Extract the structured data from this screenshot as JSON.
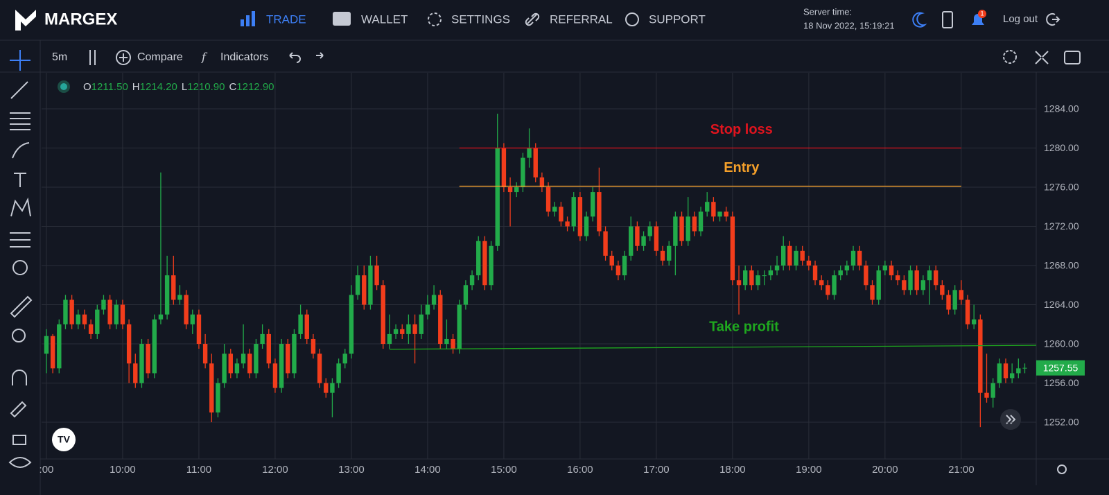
{
  "nav": {
    "logo": "MARGEX",
    "items": [
      "TRADE",
      "WALLET",
      "SETTINGS",
      "REFERRAL",
      "SUPPORT"
    ],
    "server_time_label": "Server time:",
    "server_time": "18 Nov 2022, 15:19:21",
    "notifications": "1",
    "logout": "Log out"
  },
  "toolbar": {
    "interval": "5m",
    "compare": "Compare",
    "indicators": "Indicators"
  },
  "ohlc_legend": [
    {
      "key": "O",
      "value": "1211.50"
    },
    {
      "key": "H",
      "value": "1214.20"
    },
    {
      "key": "L",
      "value": "1210.90"
    },
    {
      "key": "C",
      "value": "1212.90"
    }
  ],
  "chart_data": {
    "type": "candlestick",
    "up_color": "#22ab4a",
    "down_color": "#f23d1c",
    "grid": true,
    "xlim": [
      -0.76,
      155.8
    ],
    "ylim": [
      1248.25,
      1287.68
    ],
    "xticks": [
      {
        "value": 0,
        "label": ":00"
      },
      {
        "value": 12,
        "label": "10:00"
      },
      {
        "value": 24,
        "label": "11:00"
      },
      {
        "value": 36,
        "label": "12:00"
      },
      {
        "value": 48,
        "label": "13:00"
      },
      {
        "value": 60,
        "label": "14:00"
      },
      {
        "value": 72,
        "label": "15:00"
      },
      {
        "value": 84,
        "label": "16:00"
      },
      {
        "value": 96,
        "label": "17:00"
      },
      {
        "value": 108,
        "label": "18:00"
      },
      {
        "value": 120,
        "label": "19:00"
      },
      {
        "value": 132,
        "label": "20:00"
      },
      {
        "value": 144,
        "label": "21:00"
      }
    ],
    "yticks": [
      {
        "value": 1252,
        "label": "1252.00"
      },
      {
        "value": 1256,
        "label": "1256.00"
      },
      {
        "value": 1260,
        "label": "1260.00"
      },
      {
        "value": 1264,
        "label": "1264.00"
      },
      {
        "value": 1268,
        "label": "1268.00"
      },
      {
        "value": 1272,
        "label": "1272.00"
      },
      {
        "value": 1276,
        "label": "1276.00"
      },
      {
        "value": 1280,
        "label": "1280.00"
      },
      {
        "value": 1284,
        "label": "1284.00"
      }
    ],
    "lines": [
      {
        "label": "Stop loss",
        "color": "#e0141e",
        "x": [
          65,
          144
        ],
        "values": [
          1280,
          1280
        ]
      },
      {
        "label": "Entry",
        "color": "#f5a02a",
        "x": [
          65,
          144
        ],
        "values": [
          1276.1,
          1276.1
        ]
      },
      {
        "label": "Take profit",
        "color": "#1fa81f",
        "x": [
          54,
          155.8
        ],
        "values": [
          1259.45,
          1259.85
        ]
      }
    ],
    "ohlc": [
      [
        1259,
        1261.5,
        1257,
        1260.8
      ],
      [
        1260.8,
        1261,
        1257,
        1257.5
      ],
      [
        1257.5,
        1262.5,
        1257,
        1262
      ],
      [
        1262,
        1265,
        1261.5,
        1264.5
      ],
      [
        1264.5,
        1265,
        1261.5,
        1262
      ],
      [
        1262,
        1263.5,
        1261.5,
        1263
      ],
      [
        1263,
        1263.5,
        1261.5,
        1262
      ],
      [
        1262,
        1262.5,
        1260.5,
        1261
      ],
      [
        1261,
        1264,
        1260.5,
        1263.5
      ],
      [
        1263.5,
        1265,
        1263,
        1264.5
      ],
      [
        1264.5,
        1265,
        1261.5,
        1262
      ],
      [
        1262,
        1264.5,
        1261.5,
        1264
      ],
      [
        1264,
        1264.5,
        1261.5,
        1262
      ],
      [
        1262,
        1262.5,
        1256,
        1258
      ],
      [
        1258,
        1259,
        1255.5,
        1256
      ],
      [
        1256,
        1260.5,
        1255.5,
        1260
      ],
      [
        1260,
        1260.5,
        1256.5,
        1257
      ],
      [
        1257,
        1263,
        1256.5,
        1262.5
      ],
      [
        1262.5,
        1277.5,
        1262,
        1263
      ],
      [
        1263,
        1269,
        1262.5,
        1267
      ],
      [
        1267,
        1269,
        1264,
        1264.5
      ],
      [
        1264.5,
        1266,
        1264,
        1265
      ],
      [
        1265,
        1265.5,
        1261.5,
        1262
      ],
      [
        1262,
        1263.5,
        1261,
        1263
      ],
      [
        1263,
        1263.5,
        1259.5,
        1260
      ],
      [
        1260,
        1261,
        1257.5,
        1258
      ],
      [
        1258,
        1259,
        1252,
        1253
      ],
      [
        1253,
        1256.5,
        1252.5,
        1256
      ],
      [
        1256,
        1260,
        1255.5,
        1259
      ],
      [
        1259,
        1259.5,
        1256.5,
        1257
      ],
      [
        1257,
        1258.5,
        1256.5,
        1258
      ],
      [
        1258,
        1262,
        1257.5,
        1259
      ],
      [
        1259,
        1259.5,
        1256.5,
        1257
      ],
      [
        1257,
        1260.5,
        1256.5,
        1260
      ],
      [
        1260,
        1262,
        1259.5,
        1261
      ],
      [
        1261,
        1261.5,
        1257.5,
        1258
      ],
      [
        1258,
        1258.5,
        1255,
        1255.5
      ],
      [
        1255.5,
        1260.5,
        1255,
        1260
      ],
      [
        1260,
        1260.5,
        1256.5,
        1257
      ],
      [
        1257,
        1261.5,
        1256.5,
        1261
      ],
      [
        1261,
        1264,
        1260.5,
        1263
      ],
      [
        1263,
        1263.5,
        1260,
        1260.5
      ],
      [
        1260.5,
        1261,
        1258.5,
        1259
      ],
      [
        1259,
        1259.5,
        1255.5,
        1256
      ],
      [
        1256,
        1256.5,
        1254.5,
        1255
      ],
      [
        1255,
        1256.5,
        1252.5,
        1256
      ],
      [
        1256,
        1258.5,
        1255.5,
        1258
      ],
      [
        1258,
        1259.5,
        1257.5,
        1259
      ],
      [
        1259,
        1266,
        1258.5,
        1265
      ],
      [
        1265,
        1268,
        1264.5,
        1267
      ],
      [
        1267,
        1268,
        1263.5,
        1264
      ],
      [
        1264,
        1269,
        1263.5,
        1268
      ],
      [
        1268,
        1269,
        1265.5,
        1266
      ],
      [
        1266,
        1266.5,
        1259.5,
        1260
      ],
      [
        1260,
        1263,
        1259.5,
        1261
      ],
      [
        1261,
        1262,
        1260.5,
        1261.5
      ],
      [
        1261.5,
        1262,
        1260.5,
        1261
      ],
      [
        1261,
        1263,
        1260,
        1262
      ],
      [
        1262,
        1263,
        1258,
        1261
      ],
      [
        1261,
        1264,
        1260.5,
        1263
      ],
      [
        1263,
        1265,
        1262.5,
        1264
      ],
      [
        1264,
        1266,
        1263.5,
        1265
      ],
      [
        1265,
        1265.5,
        1259.5,
        1260
      ],
      [
        1260,
        1262.5,
        1259.5,
        1260.5
      ],
      [
        1260.5,
        1261,
        1259,
        1259.5
      ],
      [
        1259.5,
        1264.5,
        1259,
        1264
      ],
      [
        1264,
        1266.5,
        1263.5,
        1266
      ],
      [
        1266,
        1267.5,
        1265.5,
        1267
      ],
      [
        1267,
        1271,
        1266.5,
        1270.5
      ],
      [
        1270.5,
        1271,
        1265.5,
        1266
      ],
      [
        1266,
        1270.5,
        1265.5,
        1270
      ],
      [
        1270,
        1283.5,
        1269.5,
        1280
      ],
      [
        1280,
        1280.5,
        1275.5,
        1276
      ],
      [
        1276,
        1277,
        1272,
        1275.5
      ],
      [
        1275.5,
        1276.5,
        1275,
        1276
      ],
      [
        1276,
        1279.5,
        1275.5,
        1279
      ],
      [
        1279,
        1282,
        1278,
        1280
      ],
      [
        1280,
        1280.5,
        1276.5,
        1277
      ],
      [
        1277,
        1277.5,
        1275.5,
        1276
      ],
      [
        1276,
        1276.5,
        1273,
        1273.5
      ],
      [
        1273.5,
        1274.5,
        1273,
        1274
      ],
      [
        1274,
        1274.5,
        1272,
        1272.5
      ],
      [
        1272.5,
        1273,
        1271.5,
        1272
      ],
      [
        1272,
        1275.5,
        1271.5,
        1275
      ],
      [
        1275,
        1275.5,
        1270.5,
        1271
      ],
      [
        1271,
        1273.5,
        1270.5,
        1273
      ],
      [
        1273,
        1276,
        1272.5,
        1275.5
      ],
      [
        1275.5,
        1278,
        1271,
        1271.5
      ],
      [
        1271.5,
        1272,
        1268.5,
        1269
      ],
      [
        1269,
        1269.5,
        1267.5,
        1268
      ],
      [
        1268,
        1268.5,
        1266.5,
        1267
      ],
      [
        1267,
        1269.5,
        1266.5,
        1269
      ],
      [
        1269,
        1273,
        1268.5,
        1272
      ],
      [
        1272,
        1272.5,
        1269.5,
        1270
      ],
      [
        1270,
        1271.5,
        1269.5,
        1271
      ],
      [
        1271,
        1272.5,
        1270.5,
        1272
      ],
      [
        1272,
        1272.5,
        1269,
        1269.5
      ],
      [
        1269.5,
        1270,
        1268,
        1268.5
      ],
      [
        1268.5,
        1270.5,
        1268,
        1270
      ],
      [
        1270,
        1273.5,
        1267,
        1273
      ],
      [
        1273,
        1273.5,
        1270,
        1270.5
      ],
      [
        1270.5,
        1275,
        1270,
        1273
      ],
      [
        1273,
        1273.5,
        1271,
        1271.5
      ],
      [
        1271.5,
        1274,
        1271,
        1273.5
      ],
      [
        1273.5,
        1275.5,
        1273,
        1274.5
      ],
      [
        1274.5,
        1275,
        1272.5,
        1273
      ],
      [
        1273,
        1273.5,
        1272.5,
        1273.5
      ],
      [
        1273.5,
        1274,
        1272.5,
        1273
      ],
      [
        1273,
        1273.5,
        1266,
        1266.5
      ],
      [
        1266.5,
        1268,
        1263,
        1266
      ],
      [
        1266,
        1268,
        1265.5,
        1267.5
      ],
      [
        1267.5,
        1268,
        1265.5,
        1266
      ],
      [
        1266,
        1267.5,
        1265.5,
        1267
      ],
      [
        1267,
        1267.5,
        1266,
        1267
      ],
      [
        1267,
        1268,
        1266.5,
        1267.5
      ],
      [
        1267.5,
        1269,
        1267,
        1268
      ],
      [
        1268,
        1271,
        1267.5,
        1270
      ],
      [
        1270,
        1270.5,
        1267.5,
        1268
      ],
      [
        1268,
        1270,
        1267.5,
        1269.5
      ],
      [
        1269.5,
        1270,
        1268,
        1268.5
      ],
      [
        1268.5,
        1269,
        1267.5,
        1268
      ],
      [
        1268,
        1268.5,
        1266,
        1266.5
      ],
      [
        1266.5,
        1267,
        1265.5,
        1266
      ],
      [
        1266,
        1266.5,
        1264.5,
        1265
      ],
      [
        1265,
        1267.5,
        1264.5,
        1267
      ],
      [
        1267,
        1268,
        1266.5,
        1267.5
      ],
      [
        1267.5,
        1268.5,
        1267,
        1268
      ],
      [
        1268,
        1270,
        1267.5,
        1269.5
      ],
      [
        1269.5,
        1270,
        1267.5,
        1268
      ],
      [
        1268,
        1268.5,
        1265.5,
        1266
      ],
      [
        1266,
        1266.5,
        1264,
        1264.5
      ],
      [
        1264.5,
        1268,
        1264,
        1267.5
      ],
      [
        1267.5,
        1268.5,
        1267,
        1268
      ],
      [
        1268,
        1268.5,
        1266.5,
        1267
      ],
      [
        1267,
        1267.5,
        1266,
        1266.5
      ],
      [
        1266.5,
        1267,
        1265,
        1265.5
      ],
      [
        1265.5,
        1268,
        1265,
        1267.5
      ],
      [
        1267.5,
        1268,
        1265,
        1265.5
      ],
      [
        1265.5,
        1267,
        1265,
        1266.5
      ],
      [
        1266.5,
        1268,
        1264,
        1267.5
      ],
      [
        1267.5,
        1268,
        1265.5,
        1266
      ],
      [
        1266,
        1266.5,
        1264.5,
        1265
      ],
      [
        1265,
        1265.5,
        1263,
        1263.5
      ],
      [
        1263.5,
        1266,
        1263,
        1265.5
      ],
      [
        1265.5,
        1266.5,
        1264,
        1264.5
      ],
      [
        1264.5,
        1265,
        1261.5,
        1262
      ],
      [
        1262,
        1264,
        1261.5,
        1262.5
      ],
      [
        1262.5,
        1263,
        1251.5,
        1255
      ],
      [
        1255,
        1259,
        1254,
        1254.5
      ],
      [
        1254.5,
        1256.5,
        1253.5,
        1256
      ],
      [
        1256,
        1258.5,
        1255.5,
        1258
      ],
      [
        1258,
        1258.5,
        1256,
        1256.5
      ],
      [
        1256.5,
        1258,
        1256,
        1257
      ],
      [
        1257,
        1258.5,
        1256.5,
        1257.5
      ],
      [
        1257.5,
        1258,
        1257,
        1257.55
      ]
    ]
  }
}
